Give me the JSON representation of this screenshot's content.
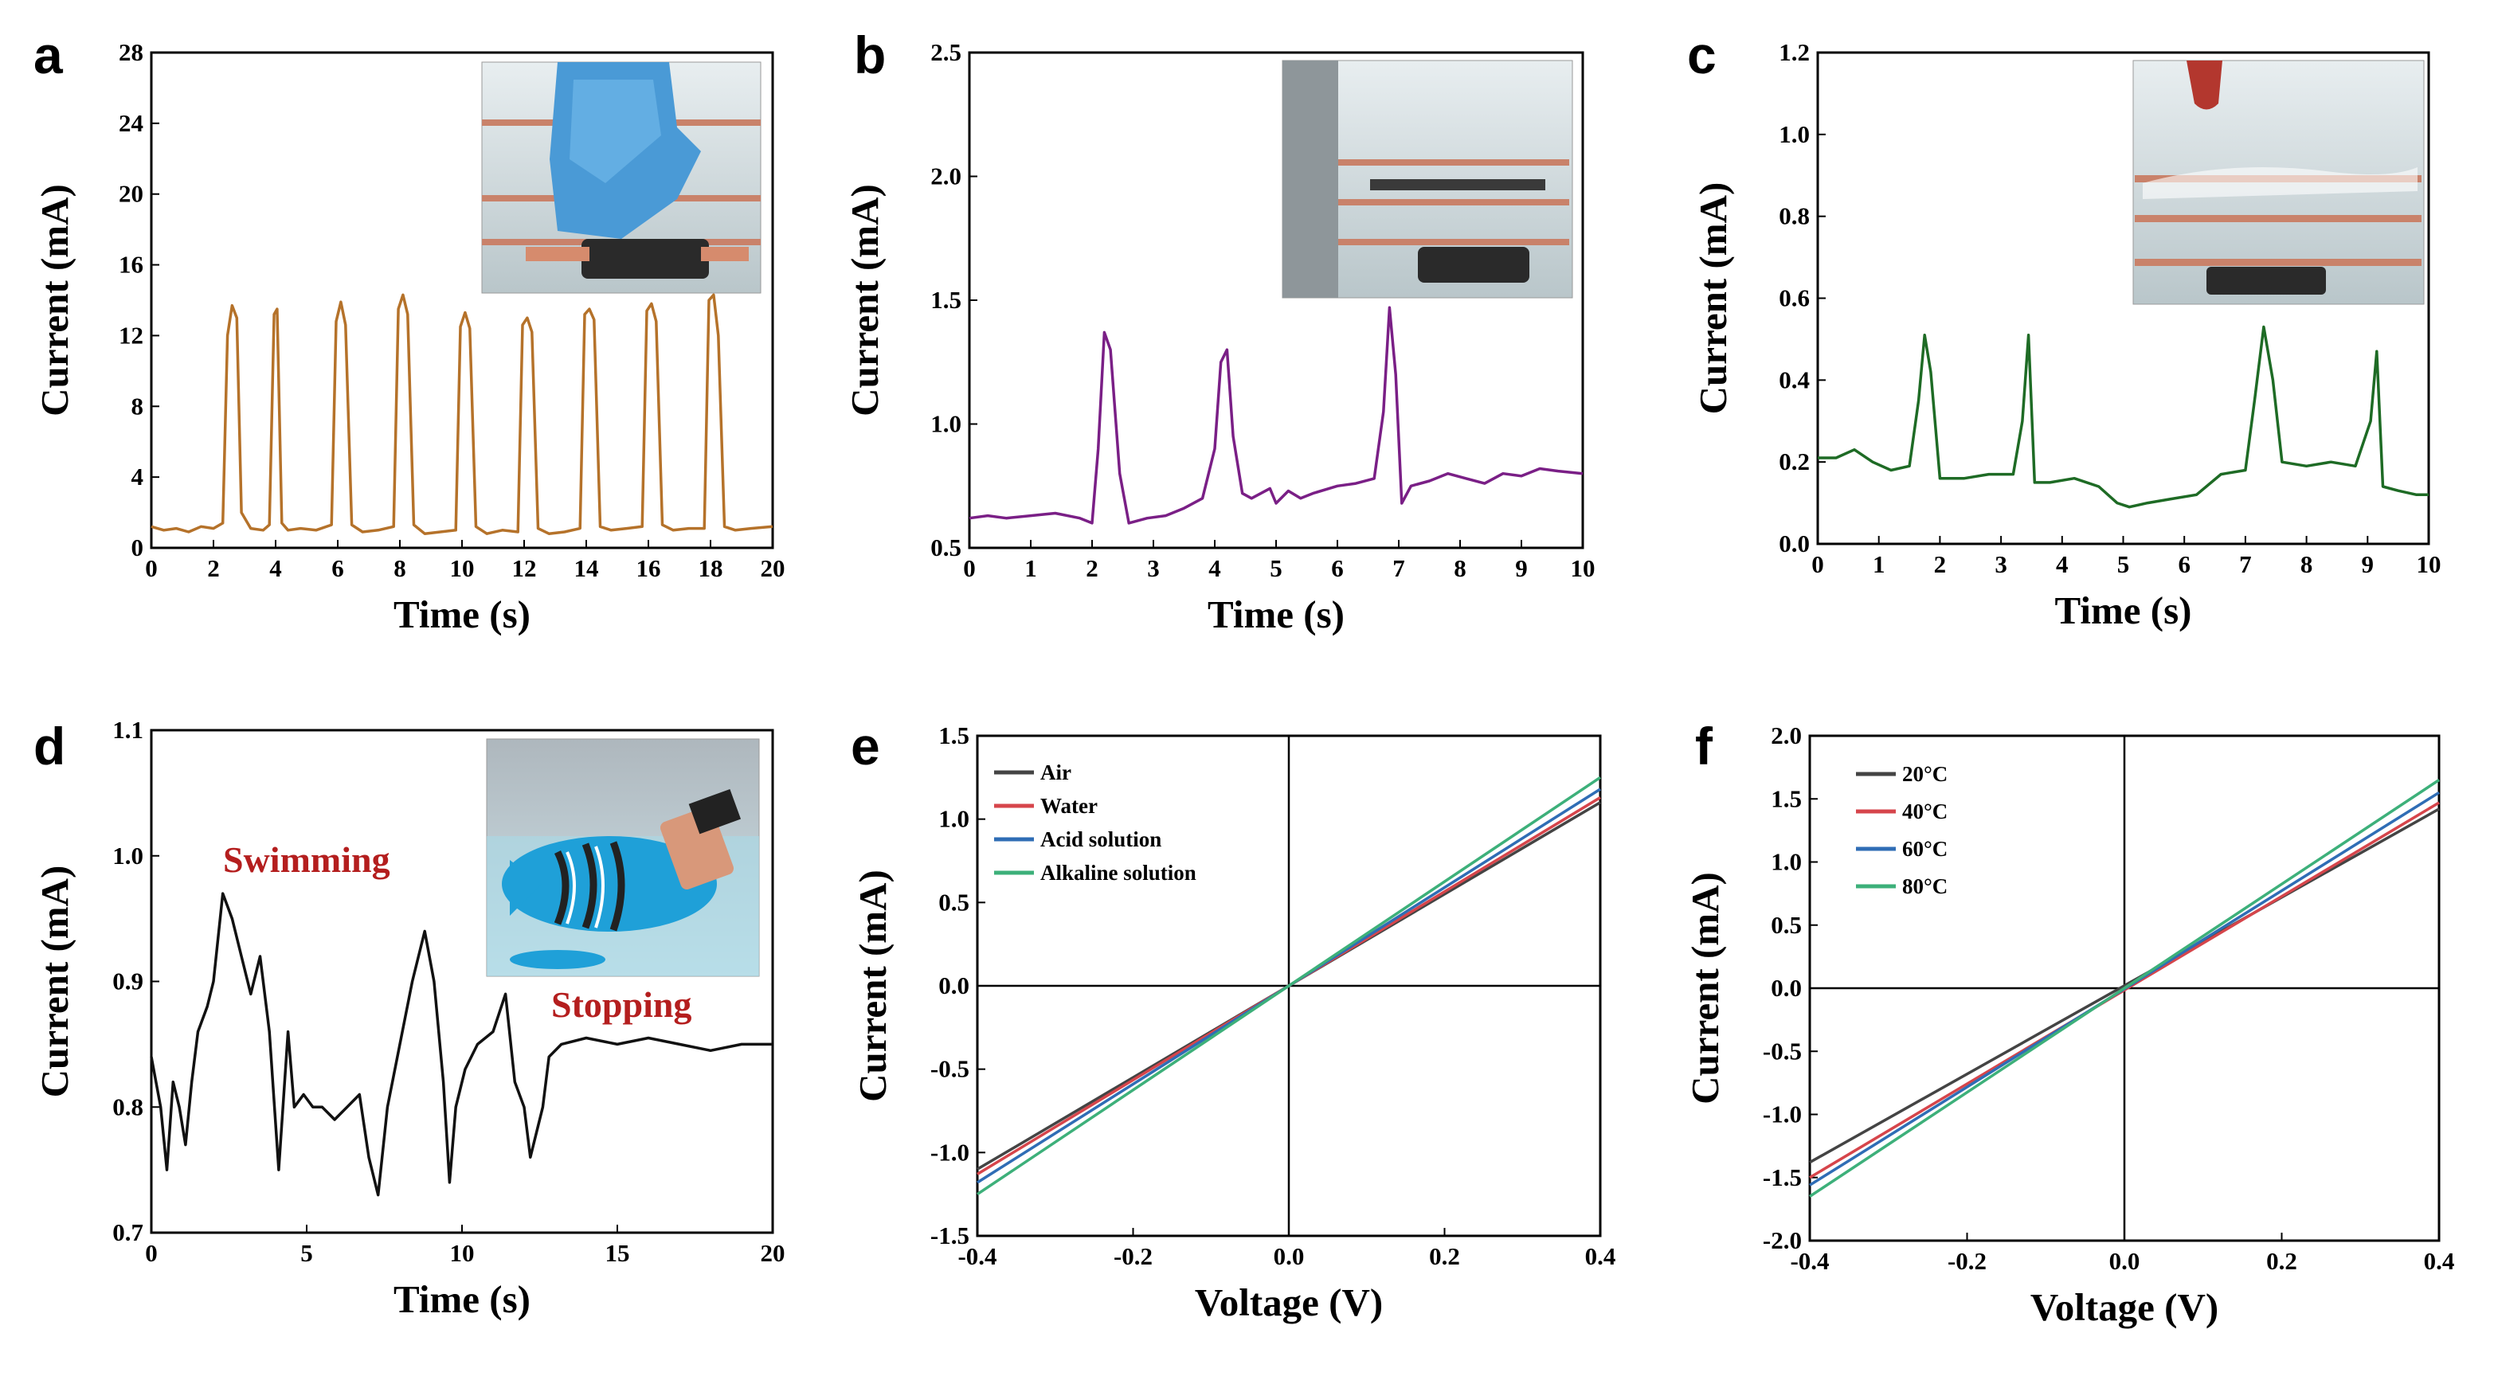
{
  "figure": {
    "colors": {
      "a": "#b5722a",
      "b": "#7a1f86",
      "c": "#1e6b25",
      "d": "#111111",
      "air": "#444444",
      "water": "#d6454b",
      "acid": "#2f6db5",
      "alkaline": "#3db07a",
      "annotation": "#b41e1e"
    }
  },
  "chart_data": [
    {
      "id": "a",
      "panel": "a",
      "type": "line",
      "xlabel": "Time (s)",
      "ylabel": "Current (mA)",
      "xlim": [
        0,
        20
      ],
      "ylim": [
        0,
        28
      ],
      "xticks": [
        0,
        2,
        4,
        6,
        8,
        10,
        12,
        14,
        16,
        18,
        20
      ],
      "yticks": [
        0,
        4,
        8,
        12,
        16,
        20,
        24,
        28
      ],
      "inset": "photo: gloved hand pressing sensor in water",
      "series": [
        {
          "name": "Current",
          "color": "#b5722a",
          "x": [
            0,
            0.4,
            0.8,
            1.2,
            1.6,
            2.0,
            2.3,
            2.45,
            2.6,
            2.75,
            2.9,
            3.2,
            3.6,
            3.8,
            3.95,
            4.05,
            4.2,
            4.4,
            4.8,
            5.3,
            5.8,
            5.95,
            6.1,
            6.25,
            6.45,
            6.8,
            7.3,
            7.8,
            7.95,
            8.1,
            8.25,
            8.45,
            8.8,
            9.3,
            9.8,
            9.95,
            10.1,
            10.25,
            10.45,
            10.8,
            11.3,
            11.8,
            11.95,
            12.1,
            12.25,
            12.45,
            12.8,
            13.3,
            13.8,
            13.95,
            14.1,
            14.25,
            14.45,
            14.8,
            15.3,
            15.8,
            15.95,
            16.1,
            16.25,
            16.45,
            16.8,
            17.3,
            17.8,
            17.95,
            18.1,
            18.25,
            18.45,
            18.8,
            19.3,
            20
          ],
          "y": [
            1.2,
            1.0,
            1.1,
            0.9,
            1.2,
            1.1,
            1.4,
            12.0,
            13.7,
            13.0,
            2.0,
            1.1,
            1.0,
            1.3,
            13.2,
            13.5,
            1.4,
            1.0,
            1.1,
            1.0,
            1.3,
            12.8,
            13.9,
            12.6,
            1.3,
            0.9,
            1.0,
            1.2,
            13.5,
            14.3,
            13.2,
            1.3,
            0.8,
            0.9,
            1.0,
            12.5,
            13.3,
            12.4,
            1.2,
            0.8,
            1.0,
            0.9,
            12.6,
            13.0,
            12.2,
            1.1,
            0.8,
            0.9,
            1.1,
            13.2,
            13.5,
            12.9,
            1.2,
            1.0,
            1.1,
            1.2,
            13.4,
            13.8,
            12.8,
            1.3,
            1.0,
            1.1,
            1.1,
            14.0,
            14.3,
            12.0,
            1.2,
            1.0,
            1.1,
            1.2
          ]
        }
      ]
    },
    {
      "id": "b",
      "panel": "b",
      "type": "line",
      "xlabel": "Time (s)",
      "ylabel": "Current (mA)",
      "xlim": [
        0,
        10
      ],
      "ylim": [
        0.5,
        2.5
      ],
      "xticks": [
        0,
        1,
        2,
        3,
        4,
        5,
        6,
        7,
        8,
        9,
        10
      ],
      "yticks": [
        0.5,
        1.0,
        1.5,
        2.0,
        2.5
      ],
      "inset": "photo: water poured into container",
      "series": [
        {
          "name": "Current",
          "color": "#7a1f86",
          "x": [
            0,
            0.3,
            0.6,
            1.0,
            1.4,
            1.8,
            2.0,
            2.1,
            2.2,
            2.3,
            2.45,
            2.6,
            2.9,
            3.2,
            3.5,
            3.8,
            4.0,
            4.1,
            4.2,
            4.3,
            4.45,
            4.6,
            4.9,
            5.0,
            5.2,
            5.4,
            5.6,
            6.0,
            6.3,
            6.6,
            6.75,
            6.85,
            6.95,
            7.05,
            7.2,
            7.5,
            7.8,
            8.1,
            8.4,
            8.7,
            9.0,
            9.3,
            9.6,
            10
          ],
          "y": [
            0.62,
            0.63,
            0.62,
            0.63,
            0.64,
            0.62,
            0.6,
            0.9,
            1.37,
            1.3,
            0.8,
            0.6,
            0.62,
            0.63,
            0.66,
            0.7,
            0.9,
            1.25,
            1.3,
            0.95,
            0.72,
            0.7,
            0.74,
            0.68,
            0.73,
            0.7,
            0.72,
            0.75,
            0.76,
            0.78,
            1.05,
            1.47,
            1.2,
            0.68,
            0.75,
            0.77,
            0.8,
            0.78,
            0.76,
            0.8,
            0.79,
            0.82,
            0.81,
            0.8
          ]
        }
      ]
    },
    {
      "id": "c",
      "panel": "c",
      "type": "line",
      "xlabel": "Time (s)",
      "ylabel": "Current (mA)",
      "xlim": [
        0,
        10
      ],
      "ylim": [
        0.0,
        1.2
      ],
      "xticks": [
        0,
        1,
        2,
        3,
        4,
        5,
        6,
        7,
        8,
        9,
        10
      ],
      "yticks": [
        0.0,
        0.2,
        0.4,
        0.6,
        0.8,
        1.0,
        1.2
      ],
      "inset": "photo: water droplets on sensor",
      "series": [
        {
          "name": "Current",
          "color": "#1e6b25",
          "x": [
            0,
            0.3,
            0.6,
            0.9,
            1.2,
            1.5,
            1.65,
            1.75,
            1.85,
            2.0,
            2.4,
            2.8,
            3.2,
            3.35,
            3.45,
            3.55,
            3.8,
            4.2,
            4.6,
            4.9,
            5.1,
            5.4,
            5.8,
            6.2,
            6.6,
            7.0,
            7.15,
            7.3,
            7.45,
            7.6,
            8.0,
            8.4,
            8.8,
            9.05,
            9.15,
            9.25,
            9.5,
            9.8,
            10
          ],
          "y": [
            0.21,
            0.21,
            0.23,
            0.2,
            0.18,
            0.19,
            0.35,
            0.51,
            0.42,
            0.16,
            0.16,
            0.17,
            0.17,
            0.3,
            0.51,
            0.15,
            0.15,
            0.16,
            0.14,
            0.1,
            0.09,
            0.1,
            0.11,
            0.12,
            0.17,
            0.18,
            0.35,
            0.53,
            0.4,
            0.2,
            0.19,
            0.2,
            0.19,
            0.3,
            0.47,
            0.14,
            0.13,
            0.12,
            0.12
          ]
        }
      ]
    },
    {
      "id": "d",
      "panel": "d",
      "type": "line",
      "xlabel": "Time (s)",
      "ylabel": "Current (mA)",
      "xlim": [
        0,
        20
      ],
      "ylim": [
        0.7,
        1.1
      ],
      "xticks": [
        0,
        5,
        10,
        15,
        20
      ],
      "yticks": [
        0.7,
        0.8,
        0.9,
        1.0,
        1.1
      ],
      "inset": "photo: robotic fish swimming in water",
      "annotations": [
        "Swimming",
        "Stopping"
      ],
      "series": [
        {
          "name": "Current",
          "color": "#111111",
          "x": [
            0,
            0.3,
            0.5,
            0.7,
            0.9,
            1.1,
            1.3,
            1.5,
            1.8,
            2.0,
            2.3,
            2.6,
            2.9,
            3.2,
            3.5,
            3.8,
            4.1,
            4.4,
            4.6,
            4.9,
            5.2,
            5.5,
            5.9,
            6.3,
            6.7,
            7.0,
            7.3,
            7.6,
            8.0,
            8.4,
            8.8,
            9.1,
            9.4,
            9.6,
            9.8,
            10.1,
            10.5,
            11.0,
            11.4,
            11.7,
            12.0,
            12.2,
            12.4,
            12.6,
            12.8,
            13.2,
            14.0,
            15.0,
            16.0,
            17.0,
            18.0,
            19.0,
            20
          ],
          "y": [
            0.84,
            0.8,
            0.75,
            0.82,
            0.8,
            0.77,
            0.82,
            0.86,
            0.88,
            0.9,
            0.97,
            0.95,
            0.92,
            0.89,
            0.92,
            0.86,
            0.75,
            0.86,
            0.8,
            0.81,
            0.8,
            0.8,
            0.79,
            0.8,
            0.81,
            0.76,
            0.73,
            0.8,
            0.85,
            0.9,
            0.94,
            0.9,
            0.82,
            0.74,
            0.8,
            0.83,
            0.85,
            0.86,
            0.89,
            0.82,
            0.8,
            0.76,
            0.78,
            0.8,
            0.84,
            0.85,
            0.855,
            0.85,
            0.855,
            0.85,
            0.845,
            0.85,
            0.85
          ]
        }
      ]
    },
    {
      "id": "e",
      "panel": "e",
      "type": "line",
      "xlabel": "Voltage (V)",
      "ylabel": "Current (mA)",
      "xlim": [
        -0.4,
        0.4
      ],
      "ylim": [
        -1.5,
        1.5
      ],
      "xticks": [
        -0.4,
        -0.2,
        0.0,
        0.2,
        0.4
      ],
      "yticks": [
        -1.5,
        -1.0,
        -0.5,
        0.0,
        0.5,
        1.0,
        1.5
      ],
      "legend_position": "top-left",
      "series": [
        {
          "name": "Air",
          "color": "#444444",
          "x": [
            -0.4,
            0.4
          ],
          "y": [
            -1.1,
            1.1
          ]
        },
        {
          "name": "Water",
          "color": "#d6454b",
          "x": [
            -0.4,
            0.4
          ],
          "y": [
            -1.13,
            1.13
          ]
        },
        {
          "name": "Acid solution",
          "color": "#2f6db5",
          "x": [
            -0.4,
            0.4
          ],
          "y": [
            -1.18,
            1.18
          ]
        },
        {
          "name": "Alkaline solution",
          "color": "#3db07a",
          "x": [
            -0.4,
            0.4
          ],
          "y": [
            -1.25,
            1.25
          ]
        }
      ]
    },
    {
      "id": "f",
      "panel": "f",
      "type": "line",
      "xlabel": "Voltage (V)",
      "ylabel": "Current (mA)",
      "xlim": [
        -0.4,
        0.4
      ],
      "ylim": [
        -2.0,
        2.0
      ],
      "xticks": [
        -0.4,
        -0.2,
        0.0,
        0.2,
        0.4
      ],
      "yticks": [
        -2.0,
        -1.5,
        -1.0,
        -0.5,
        0.0,
        0.5,
        1.0,
        1.5,
        2.0
      ],
      "legend_position": "top-left",
      "series": [
        {
          "name": "20°C",
          "color": "#444444",
          "x": [
            -0.4,
            0.4
          ],
          "y": [
            -1.38,
            1.42
          ]
        },
        {
          "name": "40°C",
          "color": "#d6454b",
          "x": [
            -0.4,
            0.4
          ],
          "y": [
            -1.5,
            1.47
          ]
        },
        {
          "name": "60°C",
          "color": "#2f6db5",
          "x": [
            -0.4,
            0.4
          ],
          "y": [
            -1.56,
            1.55
          ]
        },
        {
          "name": "80°C",
          "color": "#3db07a",
          "x": [
            -0.4,
            0.4
          ],
          "y": [
            -1.65,
            1.65
          ]
        }
      ]
    }
  ]
}
